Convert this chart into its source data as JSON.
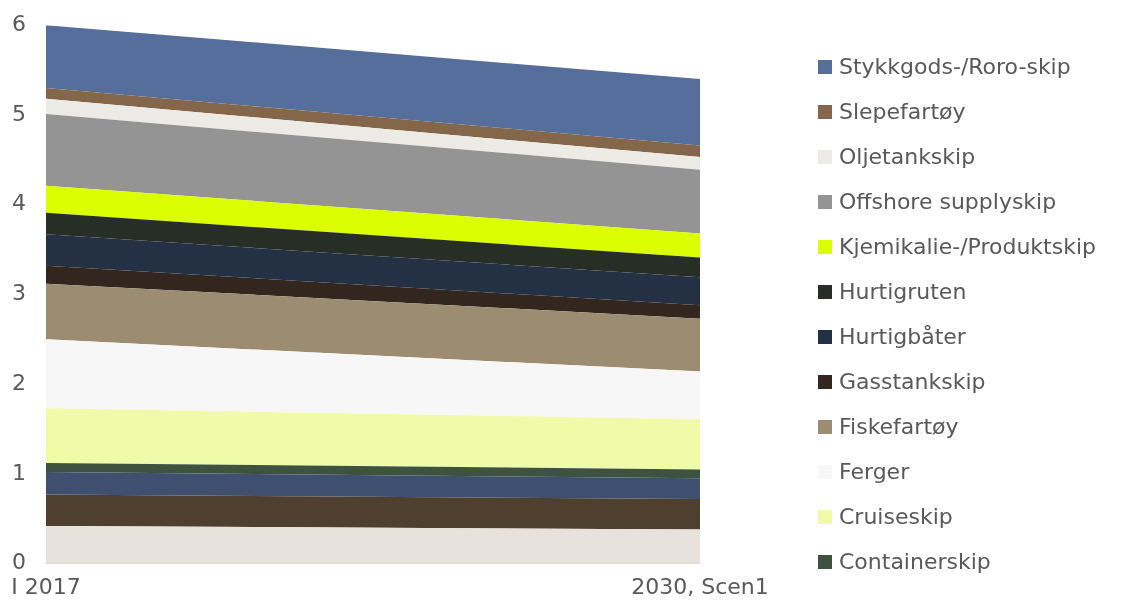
{
  "chart_data": {
    "type": "area",
    "stacked": true,
    "categories": [
      "I 2017",
      "2030, Scen1"
    ],
    "ylim": [
      0,
      6
    ],
    "yticks": [
      0,
      1,
      2,
      3,
      4,
      5,
      6
    ],
    "grid": false,
    "legend": "right",
    "series": [
      {
        "color": "#e7e3dc",
        "values": [
          0.42,
          0.38
        ]
      },
      {
        "color": "#4f3f2e",
        "values": [
          0.35,
          0.34
        ]
      },
      {
        "color": "#3f4f6f",
        "values": [
          0.25,
          0.23
        ]
      },
      {
        "name": "Containerskip",
        "color": "#3e5240",
        "values": [
          0.1,
          0.1
        ]
      },
      {
        "name": "Cruiseskip",
        "color": "#f0fbaa",
        "values": [
          0.61,
          0.56
        ]
      },
      {
        "name": "Ferger",
        "color": "#f7f7f7",
        "values": [
          0.77,
          0.53
        ]
      },
      {
        "name": "Fiskefartøy",
        "color": "#9c8d72",
        "values": [
          0.62,
          0.59
        ]
      },
      {
        "name": "Gasstankskip",
        "color": "#33261e",
        "values": [
          0.2,
          0.15
        ]
      },
      {
        "name": "Hurtigbåter",
        "color": "#243044",
        "values": [
          0.35,
          0.31
        ]
      },
      {
        "name": "Hurtigruten",
        "color": "#262e25",
        "values": [
          0.24,
          0.22
        ]
      },
      {
        "name": "Kjemikalie-/Produktskip",
        "color": "#dbff00",
        "values": [
          0.3,
          0.27
        ]
      },
      {
        "name": "Offshore supplyskip",
        "color": "#949494",
        "values": [
          0.8,
          0.71
        ]
      },
      {
        "name": "Oljetankskip",
        "color": "#ecebe6",
        "values": [
          0.17,
          0.14
        ]
      },
      {
        "name": "Slepefartøy",
        "color": "#84674b",
        "values": [
          0.12,
          0.13
        ]
      },
      {
        "name": "Stykkgods-/Roro-skip",
        "color": "#566e9b",
        "values": [
          0.7,
          0.74
        ]
      }
    ]
  }
}
